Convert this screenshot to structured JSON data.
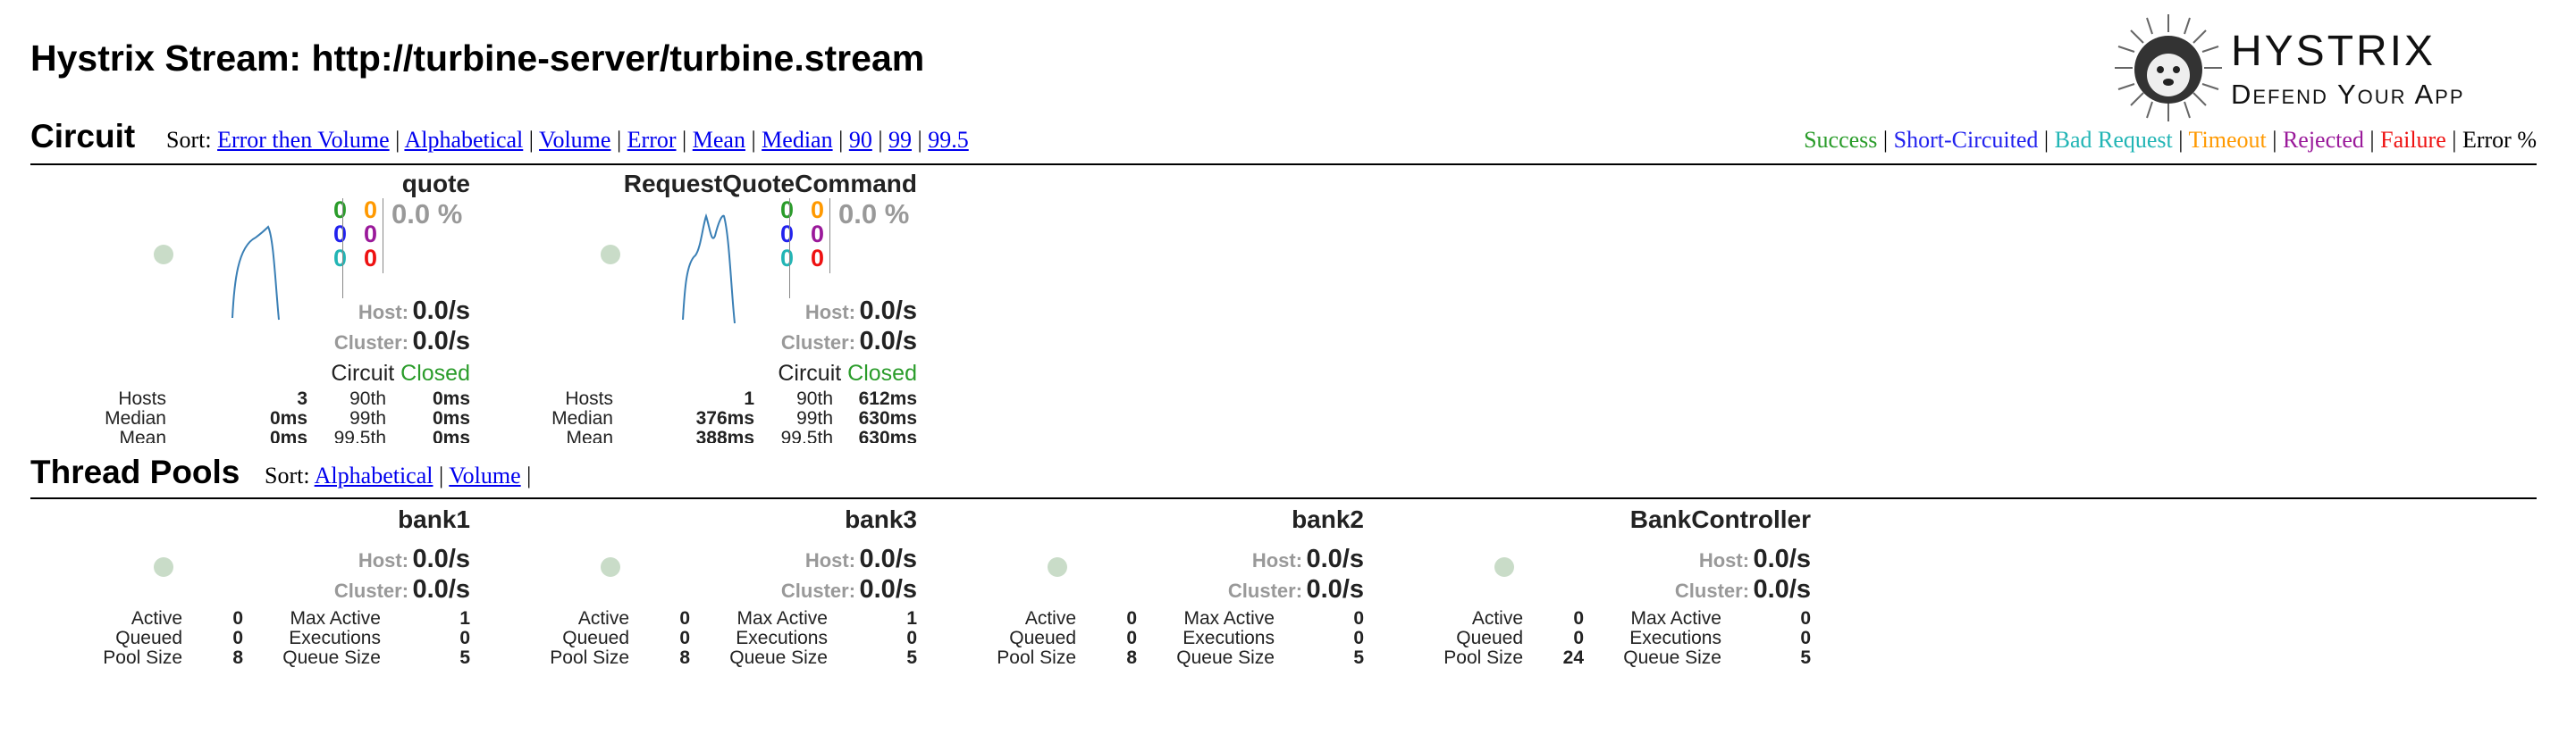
{
  "header": {
    "title": "Hystrix Stream: http://turbine-server/turbine.stream",
    "brand_name": "HYSTRIX",
    "brand_tagline": "Defend Your App"
  },
  "circuit": {
    "heading": "Circuit",
    "sort_label": "Sort:",
    "sort_links": [
      "Error then Volume",
      "Alphabetical",
      "Volume",
      "Error",
      "Mean",
      "Median",
      "90",
      "99",
      "99.5"
    ],
    "legend": [
      {
        "label": "Success",
        "color": "#2a9c2a"
      },
      {
        "label": "Short-Circuited",
        "color": "#2222ee"
      },
      {
        "label": "Bad Request",
        "color": "#22b5b5"
      },
      {
        "label": "Timeout",
        "color": "#ff9900"
      },
      {
        "label": "Rejected",
        "color": "#9a199a"
      },
      {
        "label": "Failure",
        "color": "#ee1111"
      },
      {
        "label": "Error %",
        "color": "#000000"
      }
    ],
    "cards": [
      {
        "name": "quote",
        "counts_left": [
          "0",
          "0",
          "0"
        ],
        "counts_right": [
          "0",
          "0",
          "0"
        ],
        "error_pct": "0.0 %",
        "host_label": "Host:",
        "host_rate": "0.0/s",
        "cluster_label": "Cluster:",
        "cluster_rate": "0.0/s",
        "circuit_label": "Circuit",
        "circuit_status": "Closed",
        "stats": [
          [
            "Hosts",
            "3",
            "90th",
            "0ms"
          ],
          [
            "Median",
            "0ms",
            "99th",
            "0ms"
          ],
          [
            "Mean",
            "0ms",
            "99.5th",
            "0ms"
          ]
        ]
      },
      {
        "name": "RequestQuoteCommand",
        "counts_left": [
          "0",
          "0",
          "0"
        ],
        "counts_right": [
          "0",
          "0",
          "0"
        ],
        "error_pct": "0.0 %",
        "host_label": "Host:",
        "host_rate": "0.0/s",
        "cluster_label": "Cluster:",
        "cluster_rate": "0.0/s",
        "circuit_label": "Circuit",
        "circuit_status": "Closed",
        "stats": [
          [
            "Hosts",
            "1",
            "90th",
            "612ms"
          ],
          [
            "Median",
            "376ms",
            "99th",
            "630ms"
          ],
          [
            "Mean",
            "388ms",
            "99.5th",
            "630ms"
          ]
        ]
      }
    ]
  },
  "threadpools": {
    "heading": "Thread Pools",
    "sort_label": "Sort:",
    "sort_links": [
      "Alphabetical",
      "Volume"
    ],
    "cards": [
      {
        "name": "bank1",
        "host_label": "Host:",
        "host_rate": "0.0/s",
        "cluster_label": "Cluster:",
        "cluster_rate": "0.0/s",
        "stats": [
          [
            "Active",
            "0",
            "Max Active",
            "1"
          ],
          [
            "Queued",
            "0",
            "Executions",
            "0"
          ],
          [
            "Pool Size",
            "8",
            "Queue Size",
            "5"
          ]
        ]
      },
      {
        "name": "bank3",
        "host_label": "Host:",
        "host_rate": "0.0/s",
        "cluster_label": "Cluster:",
        "cluster_rate": "0.0/s",
        "stats": [
          [
            "Active",
            "0",
            "Max Active",
            "1"
          ],
          [
            "Queued",
            "0",
            "Executions",
            "0"
          ],
          [
            "Pool Size",
            "8",
            "Queue Size",
            "5"
          ]
        ]
      },
      {
        "name": "bank2",
        "host_label": "Host:",
        "host_rate": "0.0/s",
        "cluster_label": "Cluster:",
        "cluster_rate": "0.0/s",
        "stats": [
          [
            "Active",
            "0",
            "Max Active",
            "0"
          ],
          [
            "Queued",
            "0",
            "Executions",
            "0"
          ],
          [
            "Pool Size",
            "8",
            "Queue Size",
            "5"
          ]
        ]
      },
      {
        "name": "BankController",
        "host_label": "Host:",
        "host_rate": "0.0/s",
        "cluster_label": "Cluster:",
        "cluster_rate": "0.0/s",
        "stats": [
          [
            "Active",
            "0",
            "Max Active",
            "0"
          ],
          [
            "Queued",
            "0",
            "Executions",
            "0"
          ],
          [
            "Pool Size",
            "24",
            "Queue Size",
            "5"
          ]
        ]
      }
    ]
  }
}
